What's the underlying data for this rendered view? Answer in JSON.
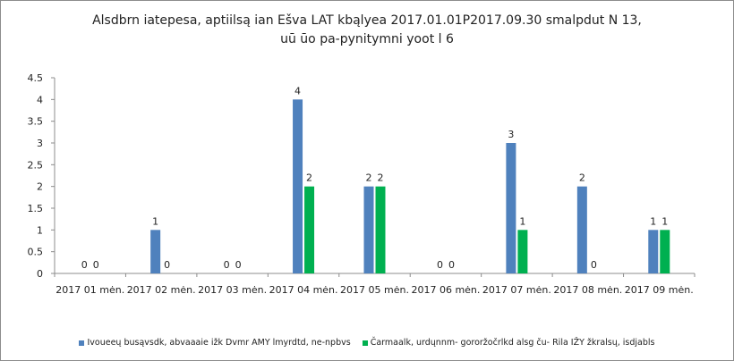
{
  "chart_data": {
    "type": "bar",
    "title_line1": "Alsdbrn iatepesa, aptiilsą ian Ešva LAT kbąlyea 2017.01.01P2017.09.30  smalpdut N 13,",
    "title_line2": "uū ūo pa-pynitymni yoot l 6",
    "categories": [
      "2017 01 mėn.",
      "2017 02 mėn.",
      "2017 03 mėn.",
      "2017 04 mėn.",
      "2017 05 mėn.",
      "2017 06 mėn.",
      "2017 07 mėn.",
      "2017 08 mėn.",
      "2017 09 mėn."
    ],
    "series": [
      {
        "name": "Ivoueeų busąvsdk, abvaaaie ižk Dvmr AMY lmyrdtd, ne-npbvs",
        "color": "#4f81bd",
        "values": [
          0,
          1,
          0,
          4,
          2,
          0,
          3,
          2,
          1
        ]
      },
      {
        "name": "Čarmaalk, urdųnnm- gororžočrlkd alsg ču- Rila IŽY žkralsų, isdjabls",
        "color": "#00b050",
        "values": [
          0,
          0,
          0,
          2,
          2,
          0,
          1,
          0,
          1
        ]
      }
    ],
    "y_ticks": [
      "0",
      "0.5",
      "1",
      "1.5",
      "2",
      "2.5",
      "3",
      "3.5",
      "4",
      "4.5"
    ],
    "ylim": [
      0,
      4.5
    ],
    "xlabel": "",
    "ylabel": "",
    "grid": false,
    "legend_position": "bottom"
  }
}
